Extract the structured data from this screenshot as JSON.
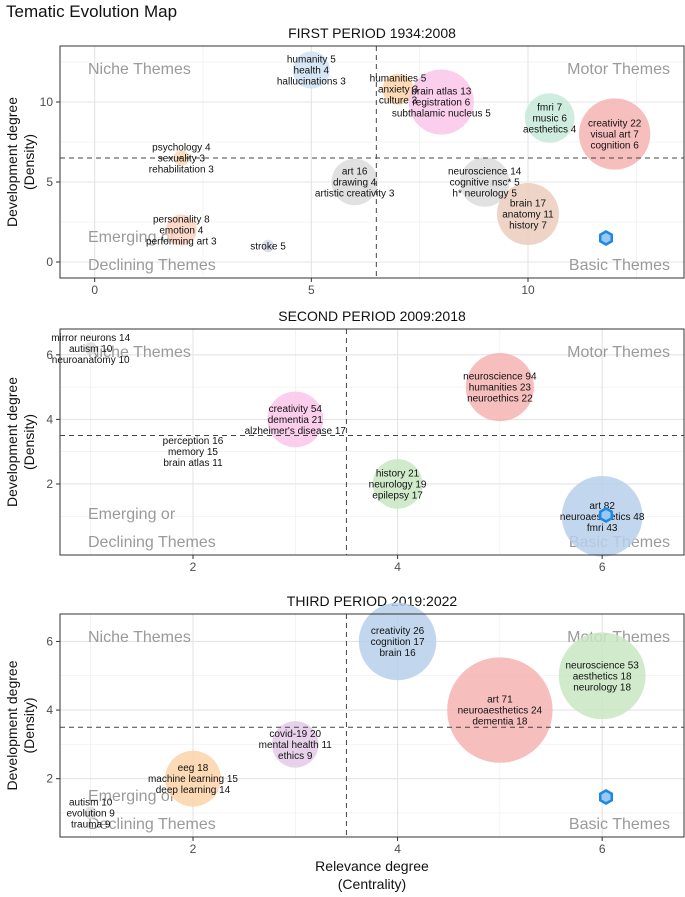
{
  "figure": {
    "title": "Tematic Evolution Map",
    "xlabel_line1": "Relevance degree",
    "xlabel_line2": "(Centrality)",
    "ylabel_line1": "Development degree",
    "ylabel_line2": "(Density)"
  },
  "colors": {
    "panel_border": "#333333",
    "grid": "#ebebeb",
    "threshold_line": "#444444",
    "quadrant_text": "#9a9a9a",
    "logo": "#1e88e5"
  },
  "logo_icon": "bibliometrix-cube-icon",
  "chart_data": [
    {
      "type": "scatter",
      "title": "FIRST PERIOD 1934:2008",
      "xlim": [
        -0.8,
        13.6
      ],
      "ylim": [
        -1,
        13.5
      ],
      "xticks": [
        0,
        5,
        10
      ],
      "yticks": [
        0,
        5,
        10
      ],
      "threshold": {
        "x": 6.5,
        "y": 6.5
      },
      "quadrants": {
        "top_left": "Niche Themes",
        "top_right": "Motor Themes",
        "bottom_left": "Emerging or Declining Themes",
        "bottom_right": "Basic Themes"
      },
      "clusters": [
        {
          "x": 5,
          "y": 12,
          "size": 12,
          "color": "#cfe2f3",
          "labels": [
            "humanity 5",
            "health 4",
            "hallucinations 3"
          ]
        },
        {
          "x": 7,
          "y": 10.8,
          "size": 10,
          "color": "#fcd3a8",
          "labels": [
            "humanities 5",
            "anxiety 3",
            "culture 3"
          ]
        },
        {
          "x": 8,
          "y": 10,
          "size": 21,
          "color": "#f9c6e9",
          "labels": [
            "brain atlas 13",
            "registration 6",
            "subthalamic nucleus 5"
          ]
        },
        {
          "x": 10.5,
          "y": 9,
          "size": 16,
          "color": "#c7ead9",
          "labels": [
            "fmri 7",
            "music 6",
            "aesthetics 4"
          ]
        },
        {
          "x": 12,
          "y": 8,
          "size": 23,
          "color": "#f6b3b3",
          "labels": [
            "creativity 22",
            "visual art 7",
            "cognition 6"
          ]
        },
        {
          "x": 2,
          "y": 6.5,
          "size": 5,
          "color": "#fcd9b6",
          "labels": [
            "psychology 4",
            "sexuality 3",
            "rehabilitation 3"
          ]
        },
        {
          "x": 6,
          "y": 5,
          "size": 15,
          "color": "#dcdcdc",
          "labels": [
            "art 16",
            "drawing 4",
            "artistic creativity 3"
          ]
        },
        {
          "x": 9,
          "y": 5,
          "size": 16,
          "color": "#dcdcdc",
          "labels": [
            "neuroscience 14",
            "cognitive nsc* 5",
            "h* neurology 5"
          ]
        },
        {
          "x": 10,
          "y": 3,
          "size": 20,
          "color": "#ebcdbc",
          "labels": [
            "brain 17",
            "anatomy 11",
            "history 7"
          ]
        },
        {
          "x": 2,
          "y": 2,
          "size": 10,
          "color": "#fcd3c2",
          "labels": [
            "personality 8",
            "emotion 4",
            "performing art 3"
          ]
        },
        {
          "x": 4,
          "y": 1,
          "size": 4,
          "color": "#d6dbea",
          "labels": [
            "stroke 5"
          ]
        }
      ]
    },
    {
      "type": "scatter",
      "title": "SECOND PERIOD 2009:2018",
      "xlim": [
        0.7,
        6.8
      ],
      "ylim": [
        -0.2,
        6.8
      ],
      "xticks": [
        2,
        4,
        6
      ],
      "yticks": [
        2,
        4,
        6
      ],
      "threshold": {
        "x": 3.5,
        "y": 3.5
      },
      "quadrants": {
        "top_left": "Niche Themes",
        "top_right": "Motor Themes",
        "bottom_left": "Emerging or Declining Themes",
        "bottom_right": "Basic Themes"
      },
      "clusters": [
        {
          "x": 1,
          "y": 6.2,
          "size": 4,
          "color": "#dddddd",
          "labels": [
            "mirror neurons 14",
            "autism 10",
            "neuroanatomy 10"
          ]
        },
        {
          "x": 5,
          "y": 5,
          "size": 22,
          "color": "#f6b3b3",
          "labels": [
            "neuroscience 94",
            "humanities 23",
            "neuroethics 22"
          ]
        },
        {
          "x": 3,
          "y": 4,
          "size": 18,
          "color": "#f9c6e9",
          "labels": [
            "creativity 54",
            "dementia 21",
            "alzheimer's disease 17"
          ]
        },
        {
          "x": 2,
          "y": 3,
          "size": 0,
          "color": "#ffffff",
          "labels": [
            "perception 16",
            "memory 15",
            "brain atlas 11"
          ]
        },
        {
          "x": 4,
          "y": 2,
          "size": 16,
          "color": "#c8e6c2",
          "labels": [
            "history 21",
            "neurology 19",
            "epilepsy 17"
          ]
        },
        {
          "x": 6,
          "y": 1,
          "size": 26,
          "color": "#b7d0ea",
          "labels": [
            "art 82",
            "neuroaesthetics 48",
            "fmri 43"
          ]
        }
      ]
    },
    {
      "type": "scatter",
      "title": "THIRD PERIOD 2019:2022",
      "xlim": [
        0.7,
        6.8
      ],
      "ylim": [
        0.3,
        6.8
      ],
      "xticks": [
        2,
        4,
        6
      ],
      "yticks": [
        2,
        4,
        6
      ],
      "threshold": {
        "x": 3.5,
        "y": 3.5
      },
      "quadrants": {
        "top_left": "Niche Themes",
        "top_right": "Motor Themes",
        "bottom_left": "Emerging or Declining Themes",
        "bottom_right": "Basic Themes"
      },
      "clusters": [
        {
          "x": 4,
          "y": 6,
          "size": 25,
          "color": "#b7d0ea",
          "labels": [
            "creativity 26",
            "cognition 17",
            "brain 16"
          ]
        },
        {
          "x": 6,
          "y": 5,
          "size": 28,
          "color": "#c8e6c2",
          "labels": [
            "neuroscience 53",
            "aesthetics 18",
            "neurology 18"
          ]
        },
        {
          "x": 5,
          "y": 4,
          "size": 34,
          "color": "#f6b3b3",
          "labels": [
            "art 71",
            "neuroaesthetics 24",
            "dementia 18"
          ]
        },
        {
          "x": 3,
          "y": 3,
          "size": 15,
          "color": "#e3c9e8",
          "labels": [
            "covid-19 20",
            "mental health 11",
            "ethics 9"
          ]
        },
        {
          "x": 2,
          "y": 2,
          "size": 18,
          "color": "#fcd3a8",
          "labels": [
            "eeg 18",
            "machine learning 15",
            "deep learning 14"
          ]
        },
        {
          "x": 1,
          "y": 1,
          "size": 4,
          "color": "#dddddd",
          "labels": [
            "autism 10",
            "evolution 9",
            "trauma 9"
          ]
        }
      ]
    }
  ]
}
